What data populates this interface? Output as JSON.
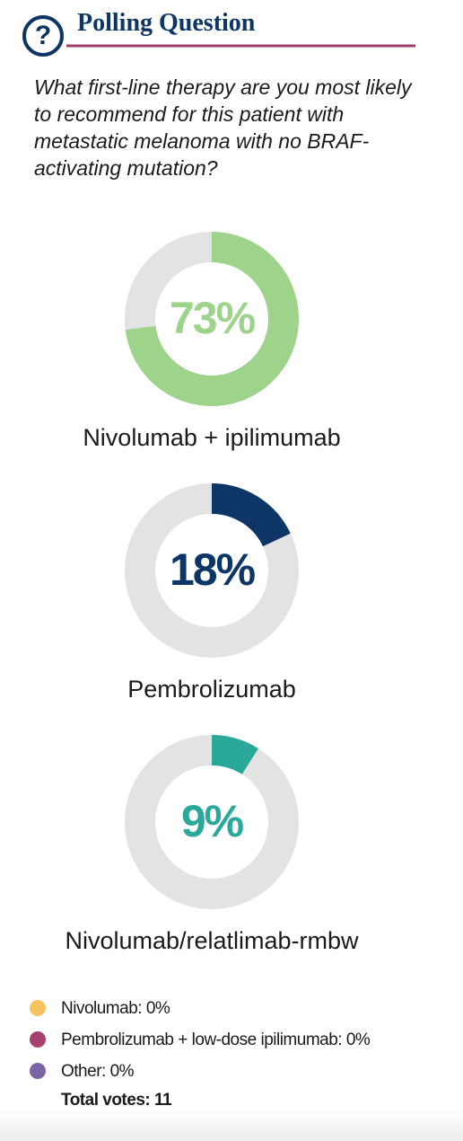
{
  "header": {
    "title": "Polling Question",
    "question": "What first-line therapy are you most likely to recommend for this patient with metastatic melanoma with no BRAF-activating mutation?"
  },
  "chart_data": {
    "type": "donut",
    "categories": [
      "Nivolumab + ipilimumab",
      "Pembrolizumab",
      "Nivolumab/relatlimab-rmbw"
    ],
    "values": [
      73,
      18,
      9
    ],
    "value_labels": [
      "73%",
      "18%",
      "9%"
    ],
    "colors": [
      "#9dd38a",
      "#0d3566",
      "#2aa89a"
    ],
    "track_color": "#e3e3e3"
  },
  "legend": {
    "items": [
      {
        "label": "Nivolumab: 0%",
        "color": "#f6c35f"
      },
      {
        "label": "Pembrolizumab + low-dose ipilimumab: 0%",
        "color": "#a4416d"
      },
      {
        "label": "Other: 0%",
        "color": "#7b67a8"
      }
    ],
    "total": "Total votes: 11"
  }
}
